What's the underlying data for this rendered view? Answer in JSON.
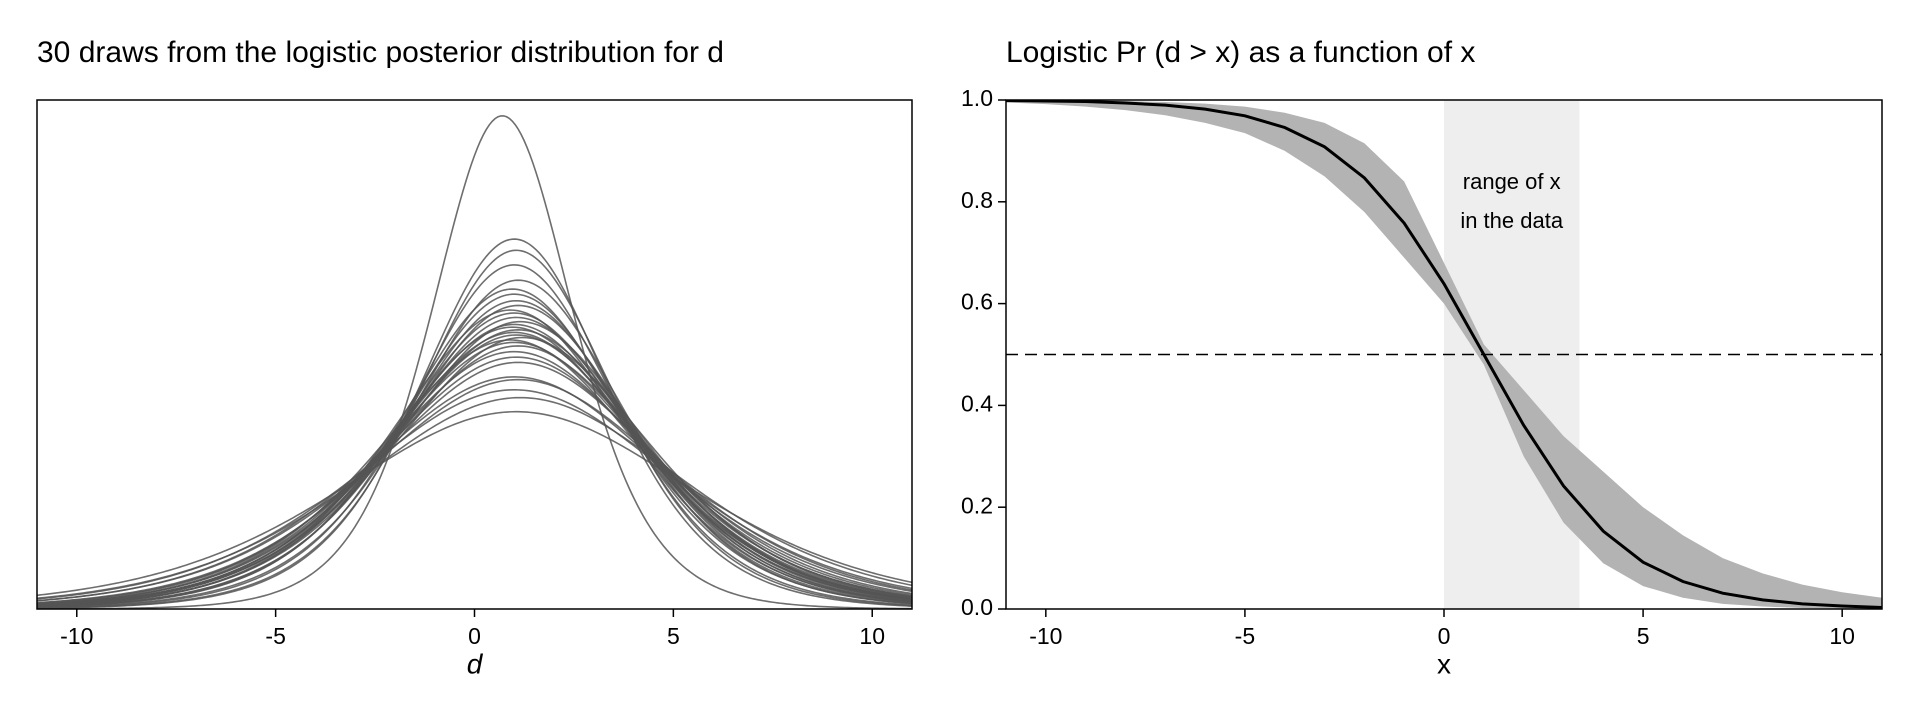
{
  "chart_data": [
    {
      "type": "density-draws",
      "title": "30 draws from the logistic posterior distribution for d",
      "xlabel": "d",
      "xlim": [
        -11,
        11
      ],
      "ylim": [
        0,
        0.215
      ],
      "xticks": [
        -10,
        -5,
        0,
        5,
        10
      ],
      "color": "#555555",
      "draws": [
        {
          "location": 0.7,
          "scale": 1.2
        },
        {
          "location": 1.0,
          "scale": 1.6
        },
        {
          "location": 1.05,
          "scale": 1.65
        },
        {
          "location": 1.0,
          "scale": 1.72
        },
        {
          "location": 1.1,
          "scale": 1.8
        },
        {
          "location": 0.95,
          "scale": 1.85
        },
        {
          "location": 1.0,
          "scale": 1.88
        },
        {
          "location": 1.05,
          "scale": 1.92
        },
        {
          "location": 1.1,
          "scale": 1.95
        },
        {
          "location": 0.9,
          "scale": 1.98
        },
        {
          "location": 1.0,
          "scale": 2.0
        },
        {
          "location": 1.05,
          "scale": 2.03
        },
        {
          "location": 1.15,
          "scale": 2.06
        },
        {
          "location": 1.0,
          "scale": 2.08
        },
        {
          "location": 0.95,
          "scale": 2.1
        },
        {
          "location": 1.1,
          "scale": 2.12
        },
        {
          "location": 1.0,
          "scale": 2.14
        },
        {
          "location": 1.05,
          "scale": 2.16
        },
        {
          "location": 1.2,
          "scale": 2.18
        },
        {
          "location": 0.9,
          "scale": 2.2
        },
        {
          "location": 1.0,
          "scale": 2.22
        },
        {
          "location": 1.1,
          "scale": 2.25
        },
        {
          "location": 1.0,
          "scale": 2.3
        },
        {
          "location": 1.05,
          "scale": 2.35
        },
        {
          "location": 1.1,
          "scale": 2.4
        },
        {
          "location": 1.0,
          "scale": 2.55
        },
        {
          "location": 1.1,
          "scale": 2.58
        },
        {
          "location": 1.0,
          "scale": 2.7
        },
        {
          "location": 1.15,
          "scale": 2.8
        },
        {
          "location": 1.05,
          "scale": 3.0
        }
      ]
    },
    {
      "type": "line-band",
      "title": "Logistic Pr (d > x) as a function of x",
      "xlabel": "x",
      "xlim": [
        -11,
        11
      ],
      "ylim": [
        0,
        1
      ],
      "xticks": [
        -10,
        -5,
        0,
        5,
        10
      ],
      "yticks": [
        {
          "value": 0,
          "label": "0.0"
        },
        {
          "value": 0.2,
          "label": "0.2"
        },
        {
          "value": 0.4,
          "label": "0.4"
        },
        {
          "value": 0.6,
          "label": "0.6"
        },
        {
          "value": 0.8,
          "label": "0.8"
        },
        {
          "value": 1,
          "label": "1.0"
        }
      ],
      "x": [
        -11,
        -10,
        -9,
        -8,
        -7,
        -6,
        -5,
        -4,
        -3,
        -2,
        -1,
        0,
        1,
        2,
        3,
        4,
        5,
        6,
        7,
        8,
        9,
        10,
        11
      ],
      "values": [
        0.999,
        0.998,
        0.997,
        0.994,
        0.99,
        0.982,
        0.969,
        0.946,
        0.908,
        0.847,
        0.758,
        0.639,
        0.5,
        0.361,
        0.242,
        0.153,
        0.092,
        0.054,
        0.031,
        0.018,
        0.01,
        0.006,
        0.003
      ],
      "upper": [
        1.0,
        1.0,
        0.999,
        0.998,
        0.996,
        0.993,
        0.987,
        0.975,
        0.955,
        0.915,
        0.84,
        0.68,
        0.52,
        0.43,
        0.34,
        0.27,
        0.2,
        0.145,
        0.1,
        0.07,
        0.048,
        0.033,
        0.022
      ],
      "lower": [
        0.995,
        0.992,
        0.987,
        0.98,
        0.97,
        0.955,
        0.935,
        0.9,
        0.85,
        0.78,
        0.69,
        0.6,
        0.48,
        0.3,
        0.17,
        0.09,
        0.045,
        0.022,
        0.01,
        0.005,
        0.002,
        0.001,
        0.0
      ],
      "color": "#000000",
      "band_color": "#b3b3b3",
      "hline": 0.5,
      "highlight": [
        0,
        3.4
      ],
      "highlight_color": "#eeeeee",
      "annotation": [
        "range of x",
        "in the data"
      ]
    }
  ]
}
